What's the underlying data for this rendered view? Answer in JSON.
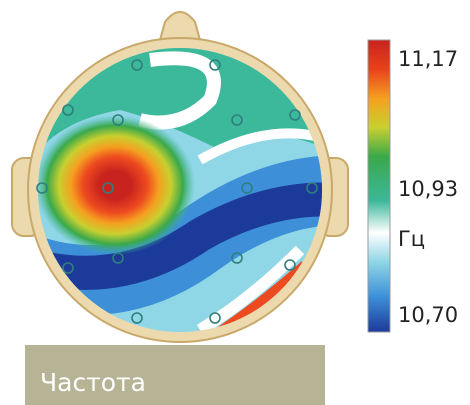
{
  "colorbar": {
    "max_label": "11,17",
    "mid_label": "10,93",
    "unit": "Гц",
    "min_label": "10,70"
  },
  "caption": "Частота"
}
